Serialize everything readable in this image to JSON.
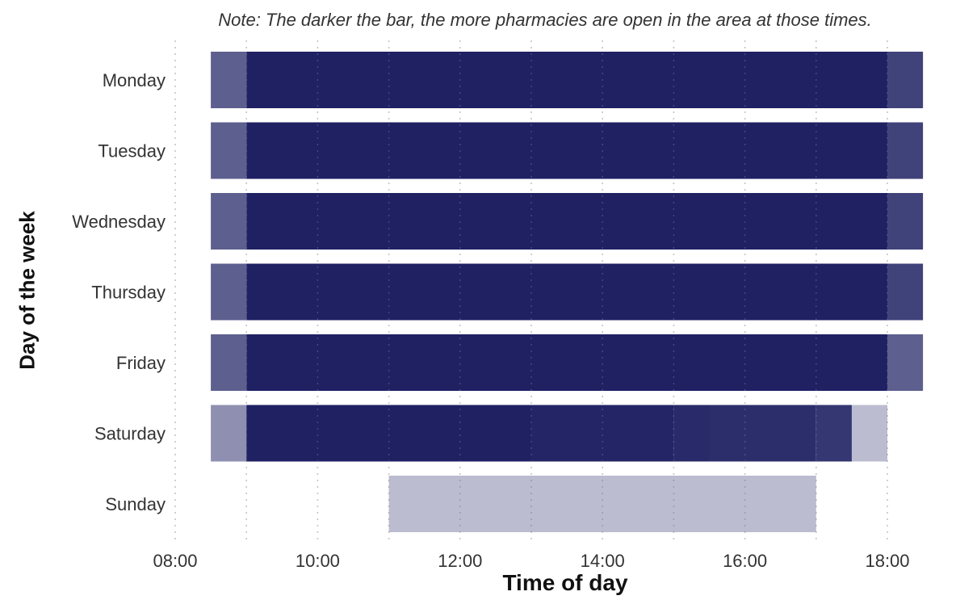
{
  "chart_data": {
    "type": "bar",
    "title": "",
    "note": "Note: The darker the bar, the more pharmacies are open in the area at those times.",
    "xlabel": "Time of day",
    "ylabel": "Day of the week",
    "categories": [
      "Monday",
      "Tuesday",
      "Wednesday",
      "Thursday",
      "Friday",
      "Saturday",
      "Sunday"
    ],
    "x_ticks": [
      "08:00",
      "10:00",
      "12:00",
      "14:00",
      "16:00",
      "18:00"
    ],
    "xlim": [
      "08:00",
      "18:30"
    ],
    "grid": "vertical dotted lines at hours",
    "series": [
      {
        "day": "Monday",
        "segments": [
          {
            "start": "08:30",
            "end": "09:00",
            "intensity": 0.72
          },
          {
            "start": "09:00",
            "end": "18:00",
            "intensity": 1.0
          },
          {
            "start": "18:00",
            "end": "18:30",
            "intensity": 0.85
          }
        ]
      },
      {
        "day": "Tuesday",
        "segments": [
          {
            "start": "08:30",
            "end": "09:00",
            "intensity": 0.72
          },
          {
            "start": "09:00",
            "end": "18:00",
            "intensity": 1.0
          },
          {
            "start": "18:00",
            "end": "18:30",
            "intensity": 0.85
          }
        ]
      },
      {
        "day": "Wednesday",
        "segments": [
          {
            "start": "08:30",
            "end": "09:00",
            "intensity": 0.72
          },
          {
            "start": "09:00",
            "end": "18:00",
            "intensity": 1.0
          },
          {
            "start": "18:00",
            "end": "18:30",
            "intensity": 0.85
          }
        ]
      },
      {
        "day": "Thursday",
        "segments": [
          {
            "start": "08:30",
            "end": "09:00",
            "intensity": 0.72
          },
          {
            "start": "09:00",
            "end": "18:00",
            "intensity": 1.0
          },
          {
            "start": "18:00",
            "end": "18:30",
            "intensity": 0.85
          }
        ]
      },
      {
        "day": "Friday",
        "segments": [
          {
            "start": "08:30",
            "end": "09:00",
            "intensity": 0.72
          },
          {
            "start": "09:00",
            "end": "18:00",
            "intensity": 1.0
          },
          {
            "start": "18:00",
            "end": "18:30",
            "intensity": 0.72
          }
        ]
      },
      {
        "day": "Saturday",
        "segments": [
          {
            "start": "08:30",
            "end": "09:00",
            "intensity": 0.5
          },
          {
            "start": "09:00",
            "end": "13:00",
            "intensity": 1.0
          },
          {
            "start": "13:00",
            "end": "15:00",
            "intensity": 0.98
          },
          {
            "start": "15:00",
            "end": "15:30",
            "intensity": 0.96
          },
          {
            "start": "15:30",
            "end": "17:00",
            "intensity": 0.94
          },
          {
            "start": "17:00",
            "end": "17:30",
            "intensity": 0.9
          },
          {
            "start": "17:30",
            "end": "18:00",
            "intensity": 0.3
          }
        ]
      },
      {
        "day": "Sunday",
        "segments": [
          {
            "start": "11:00",
            "end": "17:00",
            "intensity": 0.3
          }
        ]
      }
    ],
    "colors": {
      "bar": "#1f2163",
      "background": "#ffffff",
      "grid": "#bbbbbb",
      "text": "#333333"
    }
  }
}
